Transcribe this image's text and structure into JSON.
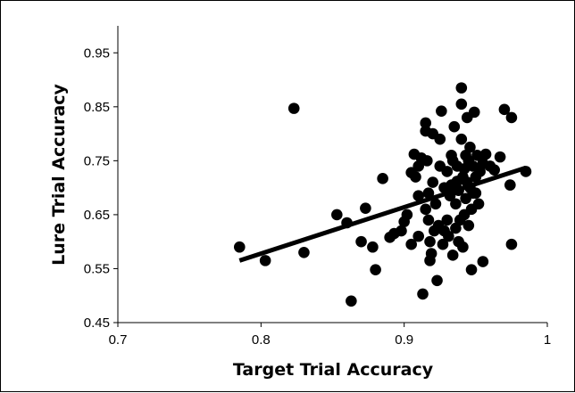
{
  "chart_data": {
    "type": "scatter",
    "title": "",
    "xlabel": "Target Trial Accuracy",
    "ylabel": "Lure Trial Accuracy",
    "xlim": [
      0.7,
      1.0
    ],
    "ylim": [
      0.45,
      1.0
    ],
    "x_ticks": [
      "0.7",
      "0.8",
      "0.9",
      "1"
    ],
    "y_ticks": [
      "0.45",
      "0.55",
      "0.65",
      "0.75",
      "0.85",
      "0.95"
    ],
    "grid": false,
    "legend": "none",
    "colors": {
      "points": "#000000",
      "trendline": "#000000",
      "frame": "#000000"
    },
    "trendline": {
      "x": [
        0.785,
        0.985
      ],
      "y": [
        0.565,
        0.737
      ]
    },
    "points": [
      [
        0.785,
        0.59
      ],
      [
        0.803,
        0.565
      ],
      [
        0.823,
        0.847
      ],
      [
        0.83,
        0.58
      ],
      [
        0.853,
        0.65
      ],
      [
        0.86,
        0.635
      ],
      [
        0.863,
        0.49
      ],
      [
        0.87,
        0.6
      ],
      [
        0.873,
        0.662
      ],
      [
        0.878,
        0.59
      ],
      [
        0.88,
        0.548
      ],
      [
        0.885,
        0.717
      ],
      [
        0.89,
        0.608
      ],
      [
        0.893,
        0.615
      ],
      [
        0.898,
        0.62
      ],
      [
        0.9,
        0.637
      ],
      [
        0.902,
        0.65
      ],
      [
        0.905,
        0.595
      ],
      [
        0.905,
        0.728
      ],
      [
        0.907,
        0.762
      ],
      [
        0.908,
        0.72
      ],
      [
        0.91,
        0.61
      ],
      [
        0.91,
        0.74
      ],
      [
        0.912,
        0.755
      ],
      [
        0.913,
        0.503
      ],
      [
        0.915,
        0.805
      ],
      [
        0.915,
        0.82
      ],
      [
        0.916,
        0.75
      ],
      [
        0.917,
        0.69
      ],
      [
        0.917,
        0.64
      ],
      [
        0.918,
        0.6
      ],
      [
        0.918,
        0.565
      ],
      [
        0.919,
        0.578
      ],
      [
        0.92,
        0.8
      ],
      [
        0.92,
        0.71
      ],
      [
        0.921,
        0.62
      ],
      [
        0.922,
        0.67
      ],
      [
        0.923,
        0.528
      ],
      [
        0.924,
        0.63
      ],
      [
        0.925,
        0.79
      ],
      [
        0.925,
        0.74
      ],
      [
        0.926,
        0.842
      ],
      [
        0.927,
        0.595
      ],
      [
        0.928,
        0.7
      ],
      [
        0.93,
        0.64
      ],
      [
        0.93,
        0.73
      ],
      [
        0.931,
        0.61
      ],
      [
        0.932,
        0.685
      ],
      [
        0.933,
        0.76
      ],
      [
        0.934,
        0.75
      ],
      [
        0.934,
        0.575
      ],
      [
        0.935,
        0.813
      ],
      [
        0.936,
        0.625
      ],
      [
        0.936,
        0.67
      ],
      [
        0.937,
        0.74
      ],
      [
        0.938,
        0.6
      ],
      [
        0.938,
        0.695
      ],
      [
        0.939,
        0.64
      ],
      [
        0.94,
        0.855
      ],
      [
        0.94,
        0.885
      ],
      [
        0.94,
        0.79
      ],
      [
        0.941,
        0.72
      ],
      [
        0.941,
        0.59
      ],
      [
        0.942,
        0.65
      ],
      [
        0.943,
        0.76
      ],
      [
        0.943,
        0.68
      ],
      [
        0.944,
        0.83
      ],
      [
        0.944,
        0.71
      ],
      [
        0.945,
        0.75
      ],
      [
        0.945,
        0.63
      ],
      [
        0.946,
        0.7
      ],
      [
        0.946,
        0.775
      ],
      [
        0.947,
        0.548
      ],
      [
        0.947,
        0.66
      ],
      [
        0.948,
        0.74
      ],
      [
        0.948,
        0.69
      ],
      [
        0.949,
        0.84
      ],
      [
        0.95,
        0.72
      ],
      [
        0.951,
        0.76
      ],
      [
        0.952,
        0.67
      ],
      [
        0.953,
        0.73
      ],
      [
        0.955,
        0.563
      ],
      [
        0.957,
        0.762
      ],
      [
        0.96,
        0.74
      ],
      [
        0.963,
        0.733
      ],
      [
        0.967,
        0.757
      ],
      [
        0.97,
        0.845
      ],
      [
        0.974,
        0.705
      ],
      [
        0.975,
        0.595
      ],
      [
        0.975,
        0.83
      ],
      [
        0.985,
        0.73
      ],
      [
        0.91,
        0.685
      ],
      [
        0.915,
        0.66
      ],
      [
        0.928,
        0.62
      ],
      [
        0.933,
        0.705
      ],
      [
        0.937,
        0.712
      ],
      [
        0.942,
        0.735
      ],
      [
        0.95,
        0.69
      ],
      [
        0.955,
        0.745
      ]
    ]
  }
}
